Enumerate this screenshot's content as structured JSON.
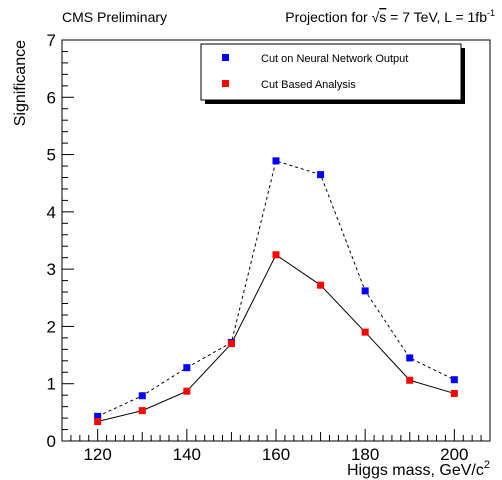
{
  "header": {
    "left_label": "CMS Preliminary",
    "right_prefix": "Projection for ",
    "right_sqrt": "√",
    "right_s": "s",
    "right_middle": " = 7 TeV, L = 1fb",
    "right_superscript": "-1"
  },
  "chart_data": {
    "type": "line",
    "x": [
      120,
      130,
      140,
      150,
      160,
      170,
      180,
      190,
      200
    ],
    "xlim": [
      112,
      208
    ],
    "ylim": [
      0,
      7
    ],
    "x_ticks": [
      120,
      140,
      160,
      180,
      200
    ],
    "y_ticks": [
      0,
      1,
      2,
      3,
      4,
      5,
      6,
      7
    ],
    "xlabel": "Higgs mass, GeV/c",
    "xlabel_superscript": "2",
    "ylabel": "Significance",
    "grid": false,
    "legend_position": "top-right",
    "series": [
      {
        "name": "Cut on Neural Network Output",
        "values": [
          0.43,
          0.79,
          1.28,
          1.72,
          4.89,
          4.65,
          2.62,
          1.45,
          1.07
        ],
        "color": "#0000ff",
        "line_style": "dashed"
      },
      {
        "name": "Cut Based Analysis",
        "values": [
          0.34,
          0.53,
          0.87,
          1.7,
          3.25,
          2.72,
          1.9,
          1.06,
          0.83
        ],
        "color": "#ff0000",
        "line_style": "solid"
      }
    ]
  }
}
